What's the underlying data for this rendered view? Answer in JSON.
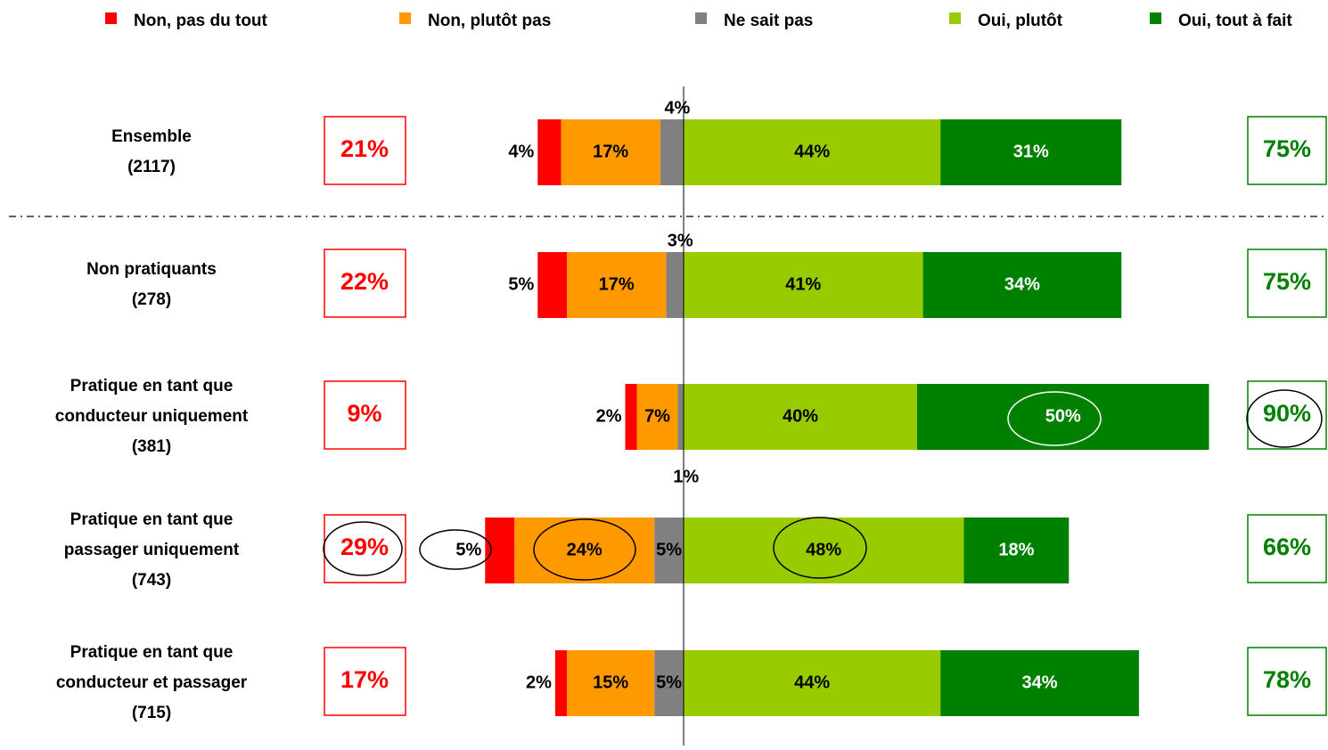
{
  "chart_data": {
    "type": "diverging_bar",
    "categories": [
      [
        "Ensemble",
        "(2117)"
      ],
      [
        "Non pratiquants",
        "(278)"
      ],
      [
        "Pratique en tant que",
        "conducteur uniquement",
        "(381)"
      ],
      [
        "Pratique en tant que",
        "passager uniquement",
        "(743)"
      ],
      [
        "Pratique en tant que",
        "conducteur et passager",
        "(715)"
      ]
    ],
    "series": [
      {
        "name": "Non, pas du tout",
        "color": "#ff0000",
        "side": "negative",
        "values": [
          4,
          5,
          2,
          5,
          2
        ],
        "value_labels": [
          "4%",
          "5%",
          "2%",
          "5%",
          "2%"
        ]
      },
      {
        "name": "Non, plutôt pas",
        "color": "#ff9900",
        "side": "negative",
        "values": [
          17,
          17,
          7,
          24,
          15
        ],
        "value_labels": [
          "17%",
          "17%",
          "7%",
          "24%",
          "15%"
        ]
      },
      {
        "name": "Ne sait pas",
        "color": "#808080",
        "side": "negative",
        "values": [
          4,
          3,
          1,
          5,
          5
        ],
        "value_labels": [
          "4%",
          "3%",
          "1%",
          "5%",
          "5%"
        ]
      },
      {
        "name": "Oui, plutôt",
        "color": "#99cc00",
        "side": "positive",
        "values": [
          44,
          41,
          40,
          48,
          44
        ],
        "value_labels": [
          "44%",
          "41%",
          "40%",
          "48%",
          "44%"
        ]
      },
      {
        "name": "Oui, tout à fait",
        "color": "#008000",
        "side": "positive",
        "values": [
          31,
          34,
          50,
          18,
          34
        ],
        "value_labels": [
          "31%",
          "34%",
          "50%",
          "18%",
          "34%"
        ]
      }
    ],
    "negative_totals": {
      "values": [
        21,
        22,
        9,
        29,
        17
      ],
      "value_labels": [
        "21%",
        "22%",
        "9%",
        "29%",
        "17%"
      ]
    },
    "positive_totals": {
      "values": [
        75,
        75,
        90,
        66,
        78
      ],
      "value_labels": [
        "75%",
        "75%",
        "90%",
        "66%",
        "78%"
      ]
    }
  }
}
